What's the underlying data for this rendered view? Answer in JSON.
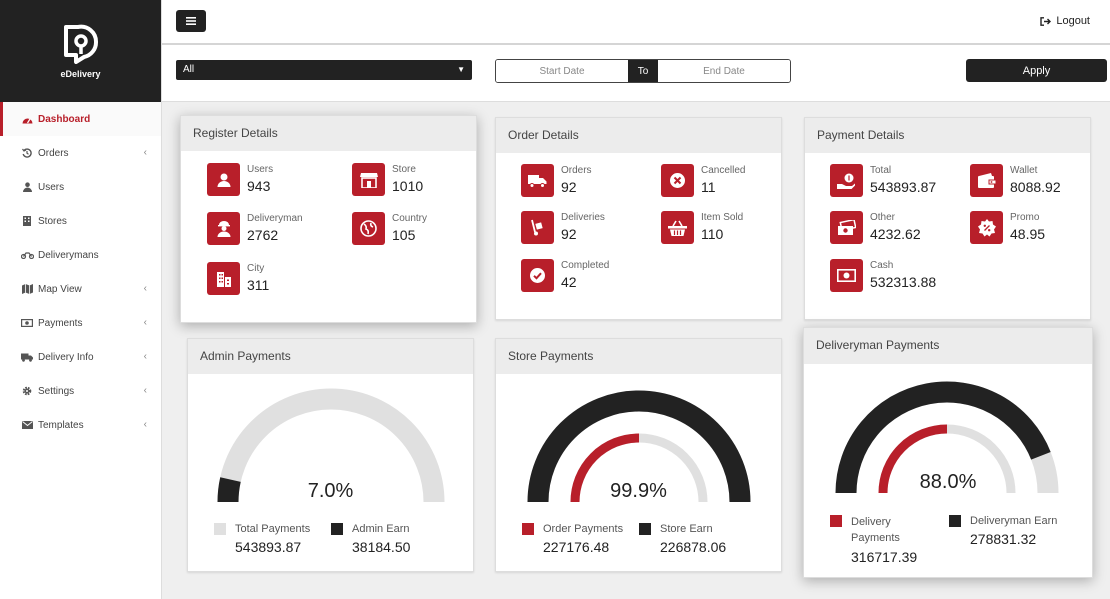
{
  "brand": {
    "name": "eDelivery"
  },
  "sidebar": {
    "items": [
      {
        "label": "Dashboard",
        "icon": "dashboard-icon",
        "has_submenu": false
      },
      {
        "label": "Orders",
        "icon": "history-icon",
        "has_submenu": true
      },
      {
        "label": "Users",
        "icon": "user-icon",
        "has_submenu": false
      },
      {
        "label": "Stores",
        "icon": "building-icon",
        "has_submenu": false
      },
      {
        "label": "Deliverymans",
        "icon": "motorcycle-icon",
        "has_submenu": false
      },
      {
        "label": "Map View",
        "icon": "map-icon",
        "has_submenu": true
      },
      {
        "label": "Payments",
        "icon": "money-icon",
        "has_submenu": true
      },
      {
        "label": "Delivery Info",
        "icon": "truck-icon",
        "has_submenu": true
      },
      {
        "label": "Settings",
        "icon": "gear-icon",
        "has_submenu": true
      },
      {
        "label": "Templates",
        "icon": "envelope-icon",
        "has_submenu": true
      }
    ]
  },
  "header": {
    "logout_label": "Logout"
  },
  "filters": {
    "select_value": "All",
    "start_placeholder": "Start Date",
    "to_label": "To",
    "end_placeholder": "End Date",
    "apply_label": "Apply"
  },
  "register": {
    "title": "Register Details",
    "users": {
      "label": "Users",
      "value": "943"
    },
    "store": {
      "label": "Store",
      "value": "1010"
    },
    "deliveryman": {
      "label": "Deliveryman",
      "value": "2762"
    },
    "country": {
      "label": "Country",
      "value": "105"
    },
    "city": {
      "label": "City",
      "value": "311"
    }
  },
  "orders": {
    "title": "Order Details",
    "orders": {
      "label": "Orders",
      "value": "92"
    },
    "cancelled": {
      "label": "Cancelled",
      "value": "11"
    },
    "deliveries": {
      "label": "Deliveries",
      "value": "92"
    },
    "item_sold": {
      "label": "Item Sold",
      "value": "110"
    },
    "completed": {
      "label": "Completed",
      "value": "42"
    }
  },
  "payment": {
    "title": "Payment Details",
    "total": {
      "label": "Total",
      "value": "543893.87"
    },
    "wallet": {
      "label": "Wallet",
      "value": "8088.92"
    },
    "other": {
      "label": "Other",
      "value": "4232.62"
    },
    "promo": {
      "label": "Promo",
      "value": "48.95"
    },
    "cash": {
      "label": "Cash",
      "value": "532313.88"
    }
  },
  "admin_payments": {
    "title": "Admin Payments",
    "percent_label": "7.0%",
    "outer_fraction": 0.07,
    "legend": [
      {
        "label": "Total Payments",
        "value": "543893.87",
        "color": "#e0e0e0"
      },
      {
        "label": "Admin Earn",
        "value": "38184.50",
        "color": "#222222"
      }
    ]
  },
  "store_payments": {
    "title": "Store Payments",
    "percent_label": "99.9%",
    "outer_fraction": 1.0,
    "inner_fraction": 0.5,
    "legend": [
      {
        "label": "Order Payments",
        "value": "227176.48",
        "color": "#b81f2a"
      },
      {
        "label": "Store Earn",
        "value": "226878.06",
        "color": "#222222"
      }
    ]
  },
  "deliveryman_payments": {
    "title": "Deliveryman Payments",
    "percent_label": "88.0%",
    "outer_fraction": 0.88,
    "inner_fraction": 0.5,
    "legend": [
      {
        "label": "Delivery Payments",
        "value": "316717.39",
        "color": "#b81f2a"
      },
      {
        "label": "Deliveryman Earn",
        "value": "278831.32",
        "color": "#222222"
      }
    ]
  },
  "colors": {
    "accent": "#b81f2a",
    "dark": "#222222",
    "track": "#e0e0e0"
  }
}
